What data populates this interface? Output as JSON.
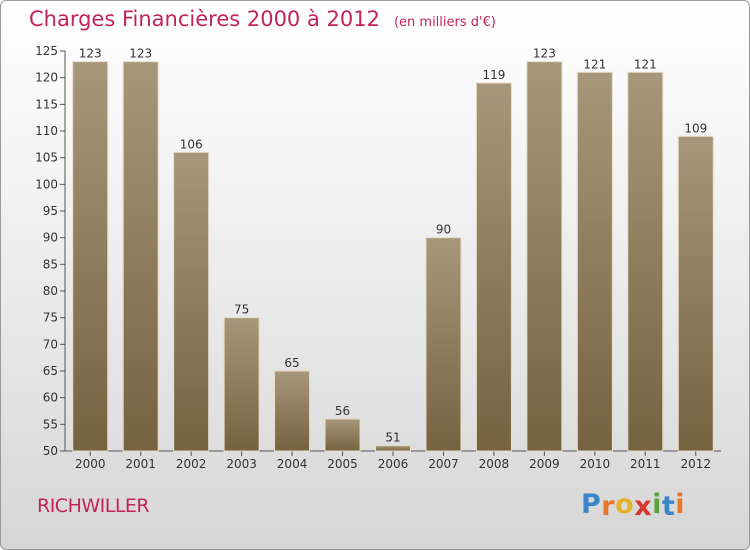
{
  "chart_data": {
    "type": "bar",
    "title": "Charges Financières 2000 à 2012",
    "subtitle": "(en milliers d'€)",
    "categories": [
      "2000",
      "2001",
      "2002",
      "2003",
      "2004",
      "2005",
      "2006",
      "2007",
      "2008",
      "2009",
      "2010",
      "2011",
      "2012"
    ],
    "values": [
      123,
      123,
      106,
      75,
      65,
      56,
      51,
      90,
      119,
      123,
      121,
      121,
      109
    ],
    "ylim": [
      50,
      125
    ],
    "yticks": [
      50,
      55,
      60,
      65,
      70,
      75,
      80,
      85,
      90,
      95,
      100,
      105,
      110,
      115,
      120,
      125
    ],
    "grid": false,
    "bar_color_top": "#a7977a",
    "bar_color_bottom": "#75623f"
  },
  "footer": {
    "city": "RICHWILLER",
    "logo_letters": [
      "P",
      "r",
      "o",
      "x",
      "i",
      "t",
      "i"
    ],
    "logo_colors": [
      "#3b86c8",
      "#e7782b",
      "#e2b22a",
      "#d8372e",
      "#5aa33e",
      "#3b86c8",
      "#e7782b"
    ]
  }
}
